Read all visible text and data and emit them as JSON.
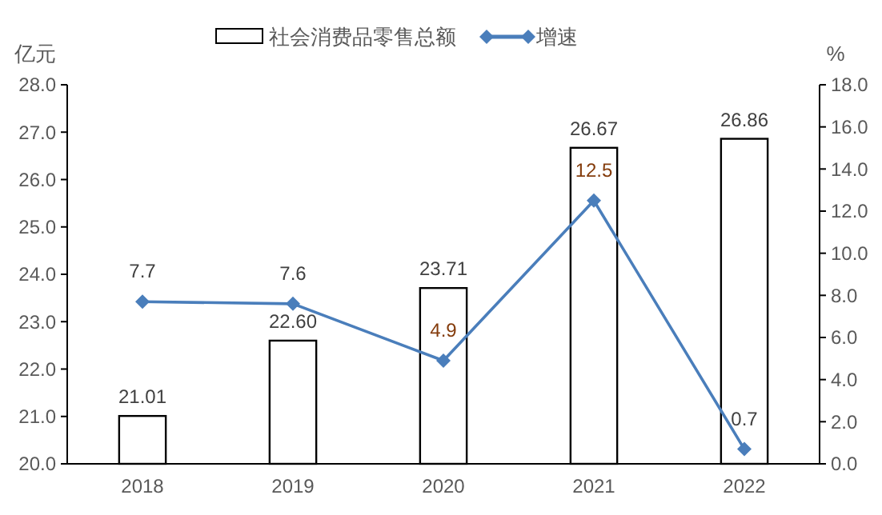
{
  "chart_data": {
    "type": "bar",
    "categories": [
      "2018",
      "2019",
      "2020",
      "2021",
      "2022"
    ],
    "ylabel": "亿元",
    "y2label": "%",
    "legend": "top",
    "series": [
      {
        "name": "社会消费品零售总额",
        "color": "#ffffff",
        "values": [
          21.01,
          22.6,
          23.71,
          26.67,
          26.86
        ],
        "value_labels": [
          "21.01",
          "22.60",
          "23.71",
          "26.67",
          "26.86"
        ]
      },
      {
        "name": "增速",
        "type": "line",
        "axis": "y2",
        "color": "#4a7ebb",
        "marker": "diamond",
        "values": [
          7.7,
          7.6,
          4.9,
          12.5,
          0.7
        ],
        "value_labels": [
          "7.7",
          "7.6",
          "4.9",
          "12.5",
          "0.7"
        ]
      }
    ],
    "ylim": [
      20,
      28
    ],
    "yticks": [
      {
        "value": 20,
        "label": "20.0"
      },
      {
        "value": 21,
        "label": "21.0"
      },
      {
        "value": 22,
        "label": "22.0"
      },
      {
        "value": 23,
        "label": "23.0"
      },
      {
        "value": 24,
        "label": "24.0"
      },
      {
        "value": 25,
        "label": "25.0"
      },
      {
        "value": 26,
        "label": "26.0"
      },
      {
        "value": 27,
        "label": "27.0"
      },
      {
        "value": 28,
        "label": "28.0"
      }
    ],
    "y2lim": [
      0,
      18
    ],
    "y2ticks": [
      {
        "value": 0,
        "label": "0.0"
      },
      {
        "value": 2,
        "label": "2.0"
      },
      {
        "value": 4,
        "label": "4.0"
      },
      {
        "value": 6,
        "label": "6.0"
      },
      {
        "value": 8,
        "label": "8.0"
      },
      {
        "value": 10,
        "label": "10.0"
      },
      {
        "value": 12,
        "label": "12.0"
      },
      {
        "value": 14,
        "label": "14.0"
      },
      {
        "value": 16,
        "label": "16.0"
      },
      {
        "value": 18,
        "label": "18.0"
      }
    ]
  }
}
